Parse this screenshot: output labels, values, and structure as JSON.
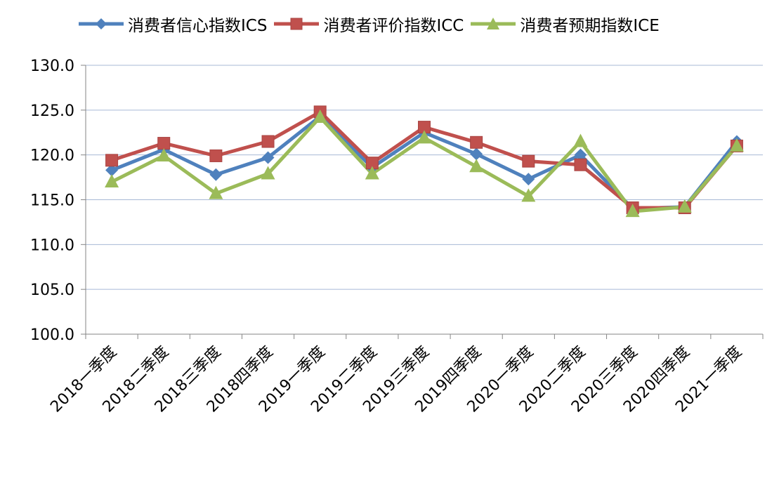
{
  "chart_data": {
    "type": "line",
    "categories": [
      "2018一季度",
      "2018二季度",
      "2018三季度",
      "2018四季度",
      "2019一季度",
      "2019二季度",
      "2019三季度",
      "2019四季度",
      "2020一季度",
      "2020二季度",
      "2020三季度",
      "2020四季度",
      "2021一季度"
    ],
    "series": [
      {
        "name": "消费者信心指数ICS",
        "color": "#4F81BD",
        "marker": "diamond",
        "values": [
          118.3,
          120.6,
          117.8,
          119.7,
          124.3,
          118.6,
          122.5,
          120.1,
          117.3,
          120.0,
          114.0,
          114.2,
          121.5
        ]
      },
      {
        "name": "消费者评价指数ICC",
        "color": "#C0504D",
        "marker": "square",
        "values": [
          119.4,
          121.3,
          119.9,
          121.5,
          124.8,
          119.1,
          123.1,
          121.4,
          119.3,
          118.9,
          114.1,
          114.1,
          121.0
        ]
      },
      {
        "name": "消费者预期指数ICE",
        "color": "#9BBB59",
        "marker": "triangle",
        "values": [
          117.0,
          119.9,
          115.7,
          117.9,
          124.2,
          117.9,
          121.9,
          118.7,
          115.4,
          121.5,
          113.7,
          114.2,
          121.0
        ]
      }
    ],
    "ylim": [
      100,
      130
    ],
    "yticks": [
      "100.0",
      "105.0",
      "110.0",
      "115.0",
      "120.0",
      "125.0",
      "130.0"
    ],
    "grid": true,
    "legend_position": "top"
  }
}
